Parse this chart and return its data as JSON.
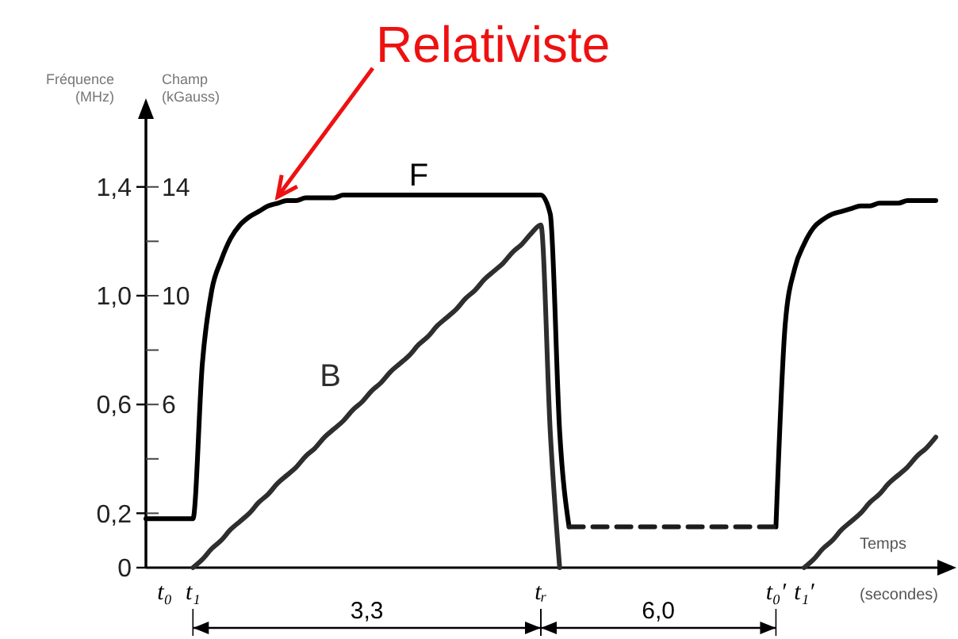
{
  "chart_data": {
    "type": "line",
    "xlabel": "Temps (secondes)",
    "ylabel": "Fréquence (MHz)",
    "y2label": "Champ (kGauss)",
    "categories": [
      null,
      null,
      "t₀",
      null,
      null,
      "t₁",
      null,
      null,
      null,
      null,
      null,
      null,
      null,
      null,
      null,
      null,
      null,
      null,
      null,
      null,
      null,
      null,
      null,
      null,
      null,
      null,
      null,
      null,
      null,
      null,
      null,
      null,
      null,
      null,
      null,
      null,
      null,
      null,
      null,
      null,
      null,
      null,
      "tᵣ",
      null,
      null,
      null,
      null,
      null,
      null,
      null,
      null,
      null,
      null,
      null,
      null,
      null,
      null,
      null,
      null,
      null,
      null,
      null,
      null,
      null,
      null,
      null,
      null,
      "t₀′",
      null,
      null,
      "t₁′",
      null,
      null,
      null,
      null,
      null,
      null,
      null,
      null,
      null,
      null,
      null,
      null,
      null,
      null
    ],
    "ylim": [
      0,
      1.65
    ],
    "y2lim": [
      0,
      16.5
    ],
    "yticks": [
      0,
      {
        "value": 0.2,
        "label": "0,2"
      },
      {
        "value": 0.6,
        "label": "0,6"
      },
      {
        "value": 1.0,
        "label": "1,0"
      },
      {
        "value": 1.4,
        "label": "1,4"
      }
    ],
    "y2ticks": [
      {
        "value": 2,
        "label": null
      },
      {
        "value": 4,
        "label": null
      },
      6,
      {
        "value": 8,
        "label": null
      },
      10,
      {
        "value": 12,
        "label": null
      },
      14
    ],
    "series": [
      {
        "name": "F",
        "color": "#000000",
        "axis": "y",
        "values": [
          0.18,
          0.18,
          0.18,
          0.18,
          0.18,
          0.18,
          0.75,
          1.02,
          1.13,
          1.21,
          1.26,
          1.29,
          1.31,
          1.33,
          1.34,
          1.35,
          1.35,
          1.36,
          1.36,
          1.36,
          1.36,
          1.37,
          1.37,
          1.37,
          1.37,
          1.37,
          1.37,
          1.37,
          1.37,
          1.37,
          1.37,
          1.37,
          1.37,
          1.37,
          1.37,
          1.37,
          1.37,
          1.37,
          1.37,
          1.37,
          1.37,
          1.37,
          1.37,
          1.3,
          0.5,
          0.15,
          null,
          null,
          null,
          null,
          null,
          null,
          null,
          null,
          null,
          null,
          null,
          null,
          null,
          null,
          null,
          null,
          null,
          null,
          null,
          null,
          null,
          0.15,
          0.9,
          1.1,
          1.19,
          1.25,
          1.28,
          1.3,
          1.31,
          1.32,
          1.33,
          1.33,
          1.34,
          1.34,
          1.34,
          1.35,
          1.35,
          1.35,
          1.35
        ]
      },
      {
        "color": "#1c1c1c",
        "axis": "y",
        "line_style": "dashed",
        "values": [
          null,
          null,
          null,
          null,
          null,
          null,
          null,
          null,
          null,
          null,
          null,
          null,
          null,
          null,
          null,
          null,
          null,
          null,
          null,
          null,
          null,
          null,
          null,
          null,
          null,
          null,
          null,
          null,
          null,
          null,
          null,
          null,
          null,
          null,
          null,
          null,
          null,
          null,
          null,
          null,
          null,
          null,
          null,
          null,
          null,
          0.15,
          0.15,
          0.15,
          0.15,
          0.15,
          0.15,
          0.15,
          0.15,
          0.15,
          0.15,
          0.15,
          0.15,
          0.15,
          0.15,
          0.15,
          0.15,
          0.15,
          0.15,
          0.15,
          0.15,
          0.15,
          0.15,
          0.15,
          null,
          null,
          null,
          null,
          null,
          null,
          null,
          null,
          null,
          null,
          null,
          null,
          null,
          null,
          null,
          null,
          null
        ]
      },
      {
        "name": "B",
        "color": "#2e2e2e",
        "axis": "y2",
        "values": [
          null,
          null,
          null,
          null,
          null,
          0,
          0.3,
          0.7,
          1.0,
          1.4,
          1.7,
          2.0,
          2.4,
          2.7,
          3.1,
          3.4,
          3.7,
          4.1,
          4.4,
          4.8,
          5.1,
          5.4,
          5.8,
          6.1,
          6.5,
          6.8,
          7.2,
          7.5,
          7.8,
          8.2,
          8.5,
          8.9,
          9.2,
          9.5,
          9.9,
          10.2,
          10.6,
          10.9,
          11.2,
          11.6,
          11.9,
          12.3,
          12.6,
          5,
          0,
          null,
          null,
          null,
          null,
          null,
          null,
          null,
          null,
          null,
          null,
          null,
          null,
          null,
          null,
          null,
          null,
          null,
          null,
          null,
          null,
          null,
          null,
          null,
          null,
          null,
          0,
          0.3,
          0.7,
          1.0,
          1.4,
          1.7,
          2.0,
          2.4,
          2.7,
          3.1,
          3.4,
          3.7,
          4.1,
          4.4,
          4.8
        ]
      }
    ],
    "annotations": [
      {
        "text": "Relativiste",
        "y": 1.34
      },
      "3,3",
      "6,0"
    ]
  }
}
